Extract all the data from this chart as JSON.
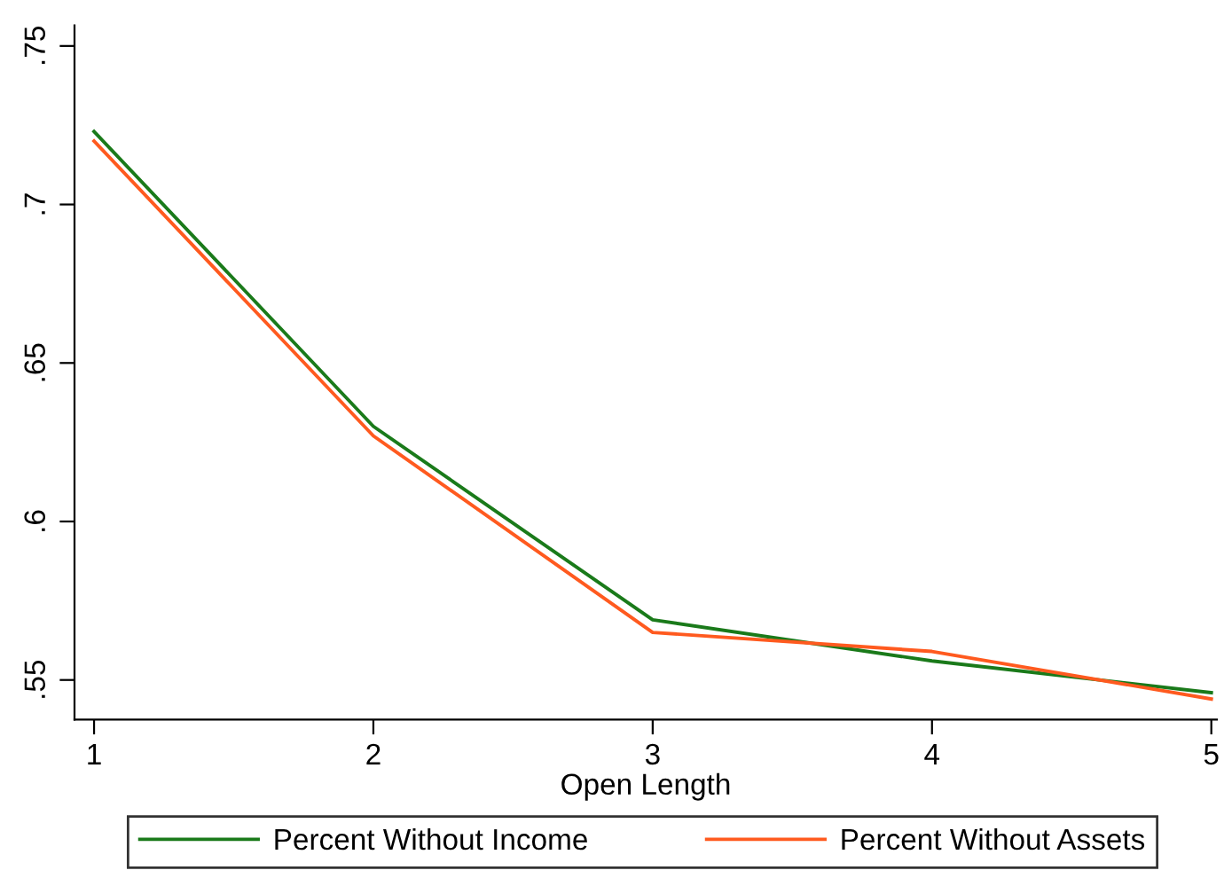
{
  "chart_data": {
    "type": "line",
    "xlabel": "Open Length",
    "x": [
      1,
      2,
      3,
      4,
      5
    ],
    "series": [
      {
        "name": "Percent Without Income",
        "color": "#1a7a1a",
        "values": [
          0.723,
          0.63,
          0.569,
          0.556,
          0.546
        ]
      },
      {
        "name": "Percent Without Assets",
        "color": "#ff5a1f",
        "values": [
          0.72,
          0.627,
          0.565,
          0.559,
          0.544
        ]
      }
    ],
    "xlim": [
      0.93,
      5.02
    ],
    "ylim": [
      0.5375,
      0.7565
    ],
    "xticks": [
      1,
      2,
      3,
      4,
      5
    ],
    "yticks": [
      {
        "value": 0.55,
        "label": ".55"
      },
      {
        "value": 0.6,
        "label": ".6"
      },
      {
        "value": 0.65,
        "label": ".65"
      },
      {
        "value": 0.7,
        "label": ".7"
      },
      {
        "value": 0.75,
        "label": ".75"
      }
    ],
    "grid": false,
    "legend": "bottom",
    "marker": "none",
    "line_style": "solid"
  }
}
